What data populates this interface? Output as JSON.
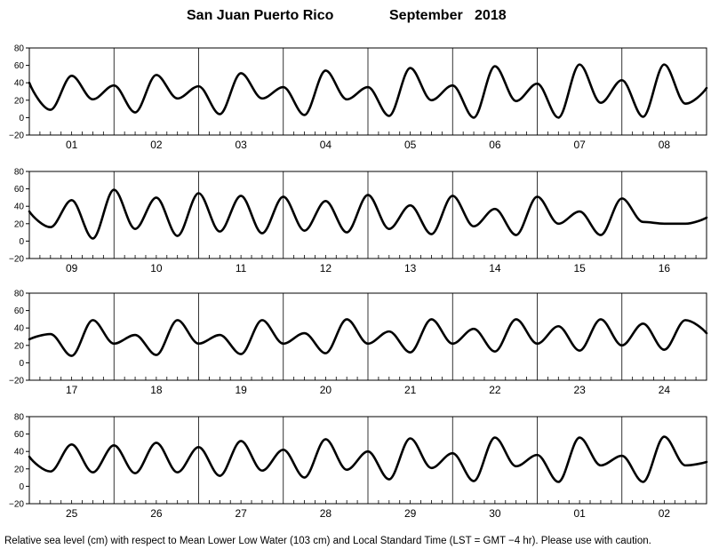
{
  "chart_data": {
    "type": "line",
    "title_location": "San Juan Puerto Rico",
    "title_period": "September   2018",
    "footer": "Relative sea level (cm) with respect to Mean Lower Low Water (103 cm) and Local Standard Time (LST = GMT −4 hr). Please use with caution.",
    "ylim": [
      -20,
      80
    ],
    "yticks": [
      "80",
      "60",
      "40",
      "20",
      "0",
      "−20"
    ],
    "grid": "vertical lines at day boundaries",
    "panels": [
      {
        "days": [
          "01",
          "02",
          "03",
          "04",
          "05",
          "06",
          "07",
          "08"
        ],
        "x": [
          0,
          0.25,
          0.5,
          0.75,
          1,
          1.25,
          1.5,
          1.75,
          2,
          2.25,
          2.5,
          2.75,
          3,
          3.25,
          3.5,
          3.75,
          4,
          4.25,
          4.5,
          4.75,
          5,
          5.25,
          5.5,
          5.75,
          6,
          6.25,
          6.5,
          6.75,
          7,
          7.25,
          7.5,
          7.75,
          8
        ],
        "y": [
          40,
          9,
          48,
          21,
          37,
          6,
          49,
          22,
          36,
          4,
          51,
          22,
          35,
          3,
          54,
          21,
          35,
          2,
          57,
          20,
          37,
          0,
          59,
          19,
          39,
          0,
          61,
          17,
          43,
          1,
          61,
          16,
          34
        ]
      },
      {
        "days": [
          "09",
          "10",
          "11",
          "12",
          "13",
          "14",
          "15",
          "16"
        ],
        "x": [
          0,
          0.25,
          0.5,
          0.75,
          1,
          1.25,
          1.5,
          1.75,
          2,
          2.25,
          2.5,
          2.75,
          3,
          3.25,
          3.5,
          3.75,
          4,
          4.25,
          4.5,
          4.75,
          5,
          5.25,
          5.5,
          5.75,
          6,
          6.25,
          6.5,
          6.75,
          7,
          7.25,
          7.5,
          7.75,
          8
        ],
        "y": [
          34,
          16,
          47,
          3,
          59,
          14,
          50,
          6,
          55,
          11,
          52,
          9,
          51,
          12,
          46,
          10,
          53,
          14,
          41,
          8,
          52,
          17,
          37,
          7,
          51,
          20,
          34,
          7,
          49,
          22,
          20,
          20,
          27
        ]
      },
      {
        "days": [
          "17",
          "18",
          "19",
          "20",
          "21",
          "22",
          "23",
          "24"
        ],
        "x": [
          0,
          0.25,
          0.5,
          0.75,
          1,
          1.25,
          1.5,
          1.75,
          2,
          2.25,
          2.5,
          2.75,
          3,
          3.25,
          3.5,
          3.75,
          4,
          4.25,
          4.5,
          4.75,
          5,
          5.25,
          5.5,
          5.75,
          6,
          6.25,
          6.5,
          6.75,
          7,
          7.25,
          7.5,
          7.75,
          8
        ],
        "y": [
          27,
          33,
          8,
          49,
          22,
          32,
          9,
          49,
          22,
          32,
          10,
          49,
          22,
          34,
          11,
          50,
          22,
          36,
          12,
          50,
          22,
          39,
          13,
          50,
          22,
          42,
          14,
          50,
          20,
          45,
          15,
          49,
          34
        ]
      },
      {
        "days": [
          "25",
          "26",
          "27",
          "28",
          "29",
          "30",
          "01",
          "02"
        ],
        "x": [
          0,
          0.25,
          0.5,
          0.75,
          1,
          1.25,
          1.5,
          1.75,
          2,
          2.25,
          2.5,
          2.75,
          3,
          3.25,
          3.5,
          3.75,
          4,
          4.25,
          4.5,
          4.75,
          5,
          5.25,
          5.5,
          5.75,
          6,
          6.25,
          6.5,
          6.75,
          7,
          7.25,
          7.5,
          7.75,
          8
        ],
        "y": [
          34,
          17,
          48,
          16,
          47,
          15,
          50,
          16,
          45,
          12,
          52,
          18,
          42,
          10,
          54,
          19,
          40,
          8,
          55,
          21,
          38,
          6,
          56,
          23,
          36,
          5,
          56,
          24,
          35,
          5,
          57,
          24,
          28
        ]
      }
    ]
  }
}
